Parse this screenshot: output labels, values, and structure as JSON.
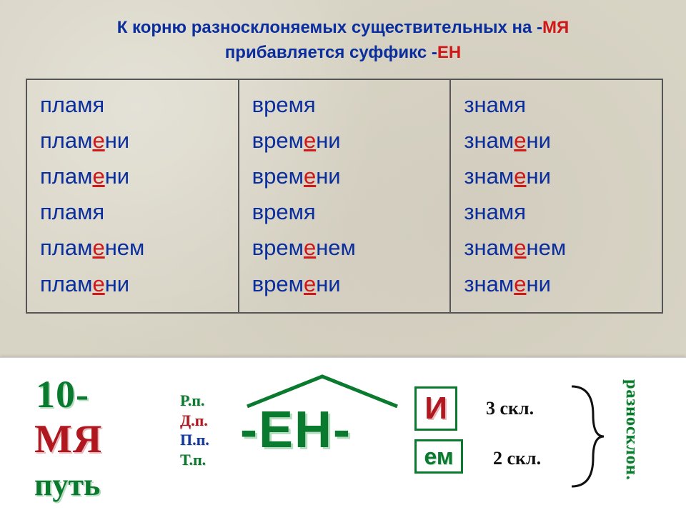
{
  "header": {
    "line1_pre": "К корню разносклоняемых существительных на -",
    "line1_mya": "МЯ",
    "line2_pre": "прибавляется суффикс -",
    "line2_en": "ЕН"
  },
  "columns": [
    {
      "rows": [
        {
          "pre": "пламя",
          "e": "",
          "post": ""
        },
        {
          "pre": "плам",
          "e": "е",
          "post": "ни"
        },
        {
          "pre": "плам",
          "e": "е",
          "post": "ни"
        },
        {
          "pre": "пламя",
          "e": "",
          "post": ""
        },
        {
          "pre": "плам",
          "e": "е",
          "post": "нем"
        },
        {
          "pre": "плам",
          "e": "е",
          "post": "ни"
        }
      ]
    },
    {
      "rows": [
        {
          "pre": "время",
          "e": "",
          "post": ""
        },
        {
          "pre": "врем",
          "e": "е",
          "post": "ни"
        },
        {
          "pre": "врем",
          "e": "е",
          "post": "ни"
        },
        {
          "pre": "время",
          "e": "",
          "post": ""
        },
        {
          "pre": "врем",
          "e": "е",
          "post": "нем"
        },
        {
          "pre": "врем",
          "e": "е",
          "post": "ни"
        }
      ]
    },
    {
      "rows": [
        {
          "pre": "знамя",
          "e": "",
          "post": ""
        },
        {
          "pre": "знам",
          "e": "е",
          "post": "ни"
        },
        {
          "pre": "знам",
          "e": "е",
          "post": "ни"
        },
        {
          "pre": "знамя",
          "e": "",
          "post": ""
        },
        {
          "pre": "знам",
          "e": "е",
          "post": "нем"
        },
        {
          "pre": "знам",
          "e": "е",
          "post": "ни"
        }
      ]
    }
  ],
  "bottom": {
    "ten": "10-",
    "mya": "МЯ",
    "put": "путь",
    "cases": {
      "rp": "Р.п.",
      "dp": "Д.п.",
      "pp": "П.п.",
      "tp": "Т.п."
    },
    "en": "-ЕН-",
    "i": "И",
    "em": "ем",
    "skl3": "3 скл.",
    "skl2": "2 скл.",
    "raz": "разносклон."
  },
  "colors": {
    "blue": "#0a2e9e",
    "red": "#d01818",
    "green": "#0a7a2e",
    "darkred": "#b01820"
  }
}
